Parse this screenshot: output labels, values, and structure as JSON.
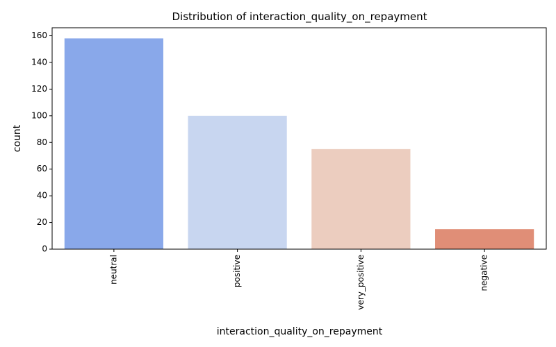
{
  "chart_data": {
    "type": "bar",
    "title": "Distribution of interaction_quality_on_repayment",
    "xlabel": "interaction_quality_on_repayment",
    "ylabel": "count",
    "categories": [
      "neutral",
      "positive",
      "very_positive",
      "negative"
    ],
    "values": [
      158,
      100,
      75,
      15
    ],
    "colors": [
      "#89a8ea",
      "#c8d6f0",
      "#eccdbf",
      "#e08e77"
    ],
    "ylim": [
      0,
      166
    ],
    "yticks": [
      0,
      20,
      40,
      60,
      80,
      100,
      120,
      140,
      160
    ],
    "grid": false,
    "legend": "none"
  }
}
